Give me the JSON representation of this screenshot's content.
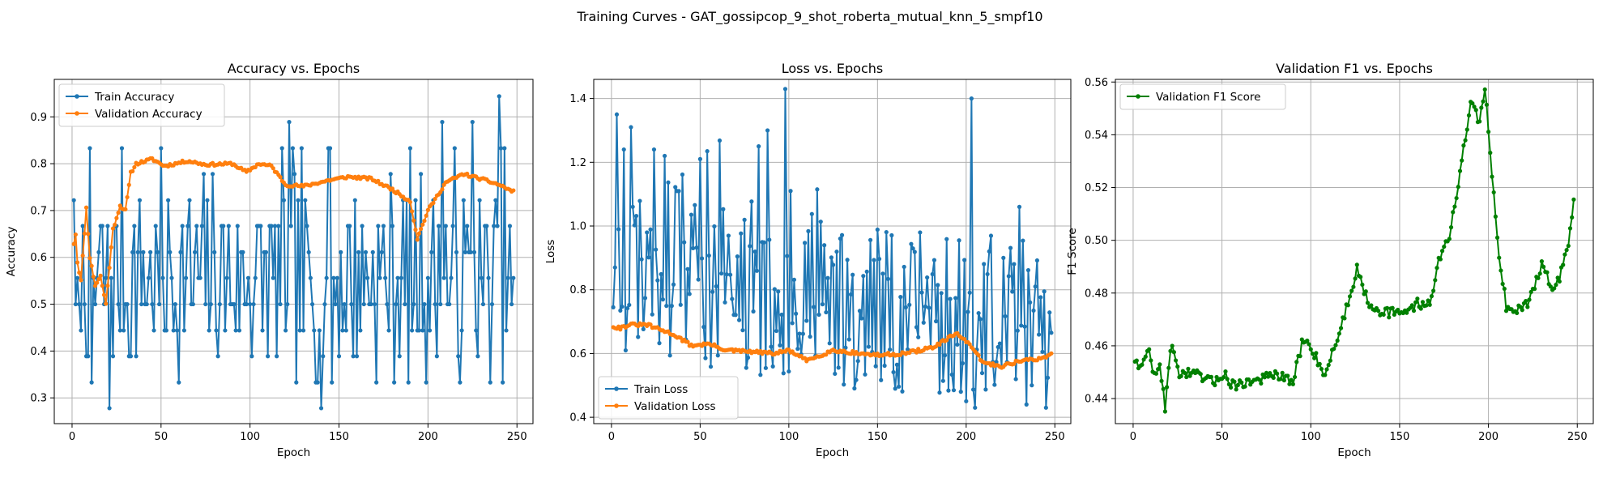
{
  "figure": {
    "suptitle": "Training Curves - GAT_gossipcop_9_shot_roberta_mutual_knn_5_smpf10"
  },
  "colors": {
    "train": "#1f77b4",
    "val": "#ff7f0e",
    "f1": "#008000"
  },
  "chart_data": [
    {
      "type": "line",
      "title": "Accuracy vs. Epochs",
      "xlabel": "Epoch",
      "ylabel": "Accuracy",
      "xlim": [
        -10,
        259
      ],
      "ylim": [
        0.245,
        0.98
      ],
      "xticks": [
        0,
        50,
        100,
        150,
        200,
        250
      ],
      "yticks": [
        0.3,
        0.4,
        0.5,
        0.6,
        0.7,
        0.8,
        0.9
      ],
      "grid": true,
      "legend": "upper left",
      "series": [
        {
          "name": "Train Accuracy",
          "color": "#1f77b4",
          "kind": "train_acc"
        },
        {
          "name": "Validation Accuracy",
          "color": "#ff7f0e",
          "kind": "val_acc"
        }
      ]
    },
    {
      "type": "line",
      "title": "Loss vs. Epochs",
      "xlabel": "Epoch",
      "ylabel": "Loss",
      "xlim": [
        -10,
        259
      ],
      "ylim": [
        0.38,
        1.46
      ],
      "xticks": [
        0,
        50,
        100,
        150,
        200,
        250
      ],
      "yticks": [
        0.4,
        0.6,
        0.8,
        1.0,
        1.2,
        1.4
      ],
      "grid": true,
      "legend": "lower left",
      "series": [
        {
          "name": "Train Loss",
          "color": "#1f77b4",
          "kind": "train_loss"
        },
        {
          "name": "Validation Loss",
          "color": "#ff7f0e",
          "kind": "val_loss"
        }
      ]
    },
    {
      "type": "line",
      "title": "Validation F1 vs. Epochs",
      "xlabel": "Epoch",
      "ylabel": "F1 Score",
      "xlim": [
        -10,
        259
      ],
      "ylim": [
        0.4305,
        0.561
      ],
      "xticks": [
        0,
        50,
        100,
        150,
        200,
        250
      ],
      "yticks": [
        0.44,
        0.46,
        0.48,
        0.5,
        0.52,
        0.54,
        0.56
      ],
      "grid": true,
      "legend": "upper left",
      "series": [
        {
          "name": "Validation F1 Score",
          "color": "#008000",
          "kind": "val_f1"
        }
      ]
    }
  ]
}
